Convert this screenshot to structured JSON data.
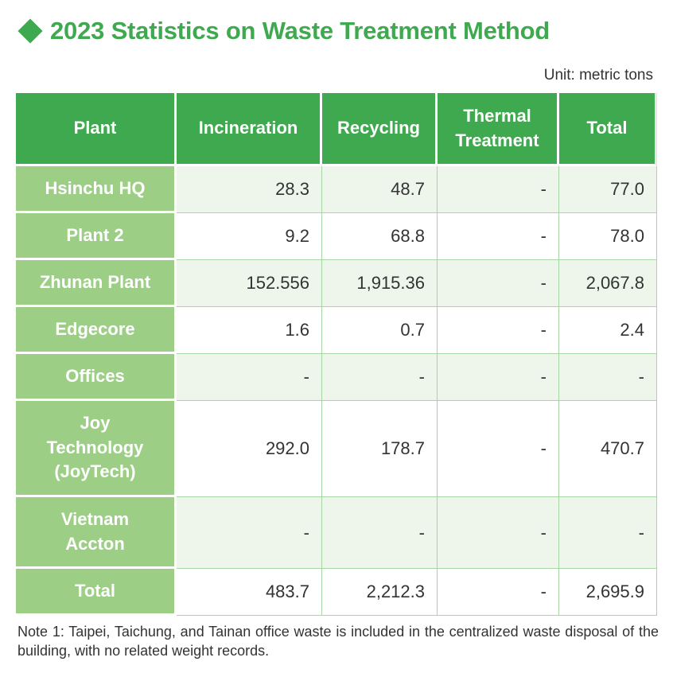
{
  "title": "2023 Statistics on Waste Treatment Method",
  "unit": "Unit: metric tons",
  "columns": {
    "plant": "Plant",
    "incineration": "Incineration",
    "recycling": "Recycling",
    "thermal": "Thermal Treatment",
    "total": "Total"
  },
  "rows": [
    {
      "plant": "Hsinchu HQ",
      "incineration": "28.3",
      "recycling": "48.7",
      "thermal": "-",
      "total": "77.0"
    },
    {
      "plant": "Plant 2",
      "incineration": "9.2",
      "recycling": "68.8",
      "thermal": "-",
      "total": "78.0"
    },
    {
      "plant": "Zhunan Plant",
      "incineration": "152.556",
      "recycling": "1,915.36",
      "thermal": "-",
      "total": "2,067.8"
    },
    {
      "plant": "Edgecore",
      "incineration": "1.6",
      "recycling": "0.7",
      "thermal": "-",
      "total": "2.4"
    },
    {
      "plant": "Offices",
      "incineration": "-",
      "recycling": "-",
      "thermal": "-",
      "total": "-"
    },
    {
      "plant": "Joy Technology (JoyTech)",
      "incineration": "292.0",
      "recycling": "178.7",
      "thermal": "-",
      "total": "470.7"
    },
    {
      "plant": "Vietnam Accton",
      "incineration": "-",
      "recycling": "-",
      "thermal": "-",
      "total": "-"
    },
    {
      "plant": "Total",
      "incineration": "483.7",
      "recycling": "2,212.3",
      "thermal": "-",
      "total": "2,695.9"
    }
  ],
  "note": "Note 1: Taipei, Taichung, and Tainan office waste is included in the centralized waste disposal of the building, with no related weight records.",
  "colors": {
    "accent": "#3fa94f",
    "plant_cell": "#9ccf85",
    "row_shade": "#eef6ec"
  },
  "icons": {
    "title_marker": "diamond-icon"
  }
}
